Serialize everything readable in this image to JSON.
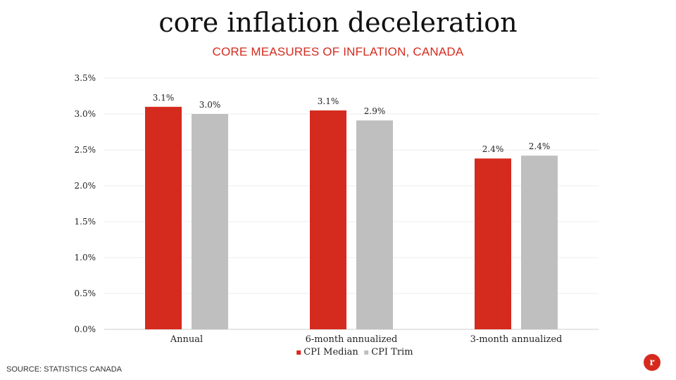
{
  "slide": {
    "title": "core inflation deceleration",
    "subtitle": "CORE MEASURES OF INFLATION, CANADA",
    "source": "SOURCE: STATISTICS CANADA",
    "logo_text": "r",
    "brand_color": "#d52b1e"
  },
  "chart_data": {
    "type": "bar",
    "title": "",
    "xlabel": "",
    "ylabel": "",
    "categories": [
      "Annual",
      "6-month annualized",
      "3-month annualized"
    ],
    "series": [
      {
        "name": "CPI Median",
        "values": [
          3.1,
          3.05,
          2.38
        ],
        "labels": [
          "3.1%",
          "3.1%",
          "2.4%"
        ],
        "color": "#d52b1e"
      },
      {
        "name": "CPI Trim",
        "values": [
          3.0,
          2.91,
          2.42
        ],
        "labels": [
          "3.0%",
          "2.9%",
          "2.4%"
        ],
        "color": "#bfbfbf"
      }
    ],
    "ylim": [
      0,
      3.5
    ],
    "yticks": [
      0,
      0.5,
      1.0,
      1.5,
      2.0,
      2.5,
      3.0,
      3.5
    ],
    "ytick_labels": [
      "0.0%",
      "0.5%",
      "1.0%",
      "1.5%",
      "2.0%",
      "2.5%",
      "3.0%",
      "3.5%"
    ],
    "grid": true,
    "legend_position": "bottom"
  }
}
